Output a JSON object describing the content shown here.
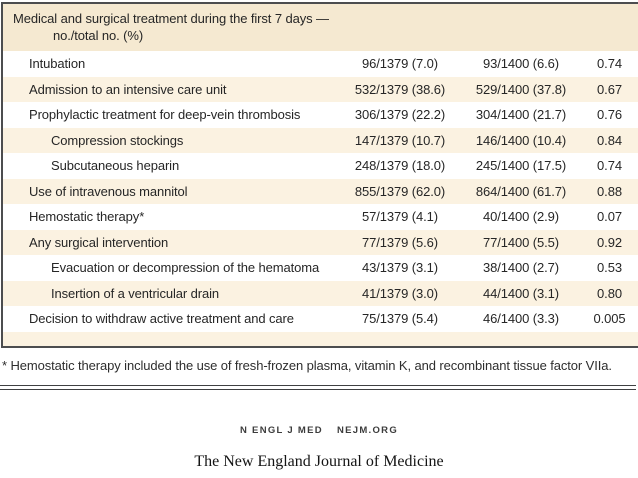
{
  "table": {
    "header": {
      "line1": "Medical and surgical treatment during the first 7 days —",
      "line2": "no./total no. (%)"
    },
    "rows": [
      {
        "label": "Intubation",
        "group1": "96/1379 (7.0)",
        "group2": "93/1400 (6.6)",
        "p": "0.74"
      },
      {
        "label": "Admission to an intensive care unit",
        "group1": "532/1379 (38.6)",
        "group2": "529/1400 (37.8)",
        "p": "0.67"
      },
      {
        "label": "Prophylactic treatment for deep-vein thrombosis",
        "group1": "306/1379 (22.2)",
        "group2": "304/1400 (21.7)",
        "p": "0.76"
      },
      {
        "label": "Compression stockings",
        "group1": "147/1379 (10.7)",
        "group2": "146/1400 (10.4)",
        "p": "0.84"
      },
      {
        "label": "Subcutaneous heparin",
        "group1": "248/1379 (18.0)",
        "group2": "245/1400 (17.5)",
        "p": "0.74"
      },
      {
        "label": "Use of intravenous mannitol",
        "group1": "855/1379 (62.0)",
        "group2": "864/1400 (61.7)",
        "p": "0.88"
      },
      {
        "label": "Hemostatic therapy*",
        "group1": "57/1379 (4.1)",
        "group2": "40/1400 (2.9)",
        "p": "0.07"
      },
      {
        "label": "Any surgical intervention",
        "group1": "77/1379 (5.6)",
        "group2": "77/1400 (5.5)",
        "p": "0.92"
      },
      {
        "label": "Evacuation or decompression of the hematoma",
        "group1": "43/1379 (3.1)",
        "group2": "38/1400 (2.7)",
        "p": "0.53"
      },
      {
        "label": "Insertion of a ventricular drain",
        "group1": "41/1379 (3.0)",
        "group2": "44/1400 (3.1)",
        "p": "0.80"
      },
      {
        "label": "Decision to withdraw active treatment and care",
        "group1": "75/1379 (5.4)",
        "group2": "46/1400 (3.3)",
        "p": "0.005"
      }
    ],
    "footnote": "* Hemostatic therapy included the use of fresh-frozen plasma, vitamin K, and recombinant tissue factor VIIa.",
    "colors": {
      "header_band": "#f5e9d1",
      "row_band": "#fbf2e1",
      "border": "#4c4d4f"
    }
  },
  "footer": {
    "citation": "N ENGL J MED",
    "site": "NEJM.ORG",
    "journal_name": "The New England Journal of Medicine"
  }
}
